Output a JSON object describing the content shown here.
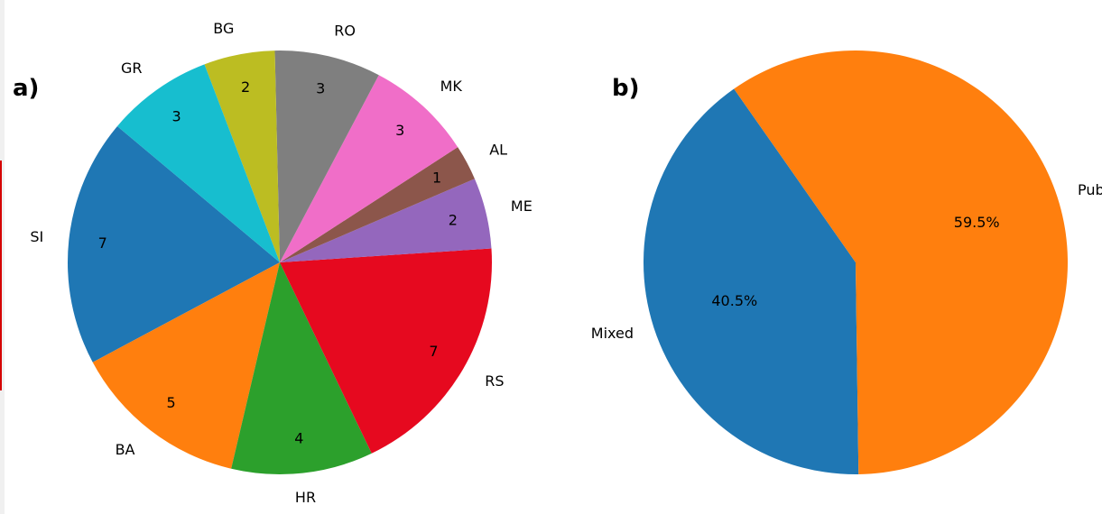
{
  "chart_data": [
    {
      "type": "pie",
      "panel_label": "a)",
      "title": "",
      "categories": [
        "SI",
        "BA",
        "HR",
        "RS",
        "ME",
        "AL",
        "MK",
        "RO",
        "BG",
        "GR"
      ],
      "values": [
        7,
        5,
        4,
        7,
        2,
        1,
        3,
        3,
        2,
        3
      ],
      "value_labels": [
        "7",
        "5",
        "4",
        "7",
        "2",
        "1",
        "3",
        "3",
        "2",
        "3"
      ],
      "colors": [
        "#1f77b4",
        "#ff7f0e",
        "#2ca02c",
        "#e6091f",
        "#9467bd",
        "#8c564b",
        "#f06ec8",
        "#7f7f7f",
        "#bcbd22",
        "#17becf"
      ],
      "start_angle_deg": 140,
      "direction": "counterclockwise"
    },
    {
      "type": "pie",
      "panel_label": "b)",
      "title": "",
      "categories": [
        "Mixed",
        "Public"
      ],
      "values": [
        40.5,
        59.5
      ],
      "value_labels": [
        "40.5%",
        "59.5%"
      ],
      "colors": [
        "#1f77b4",
        "#ff7f0e"
      ],
      "start_angle_deg": 125,
      "direction": "counterclockwise"
    }
  ]
}
